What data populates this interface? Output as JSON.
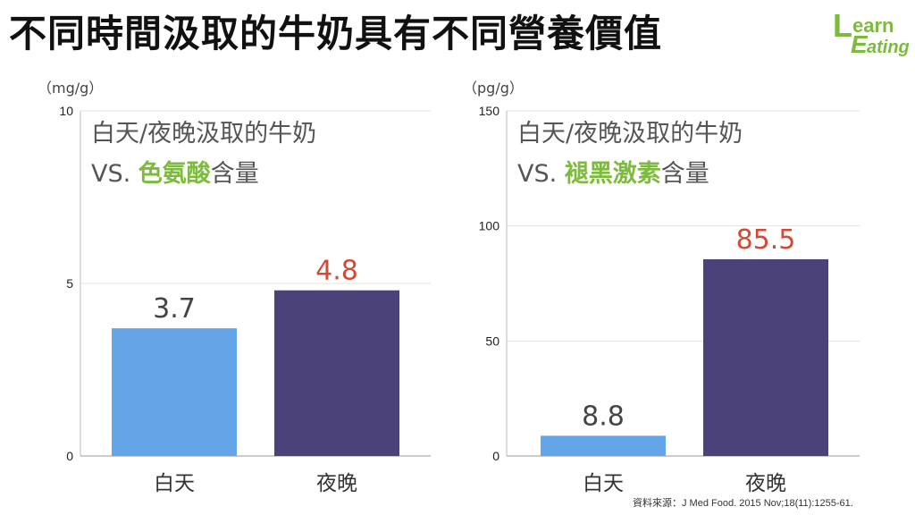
{
  "title": "不同時間汲取的牛奶具有不同營養價值",
  "logo": {
    "line1_initial": "L",
    "line1_rest": "earn",
    "line2_initial": "E",
    "line2_rest": "ating",
    "color": "#7dbb3c"
  },
  "source": "資料來源：J Med Food. 2015 Nov;18(11):1255-61.",
  "colors": {
    "day_bar": "#63a5e6",
    "night_bar": "#4b4279",
    "highlight_label": "#d24a36",
    "value_label": "#444444",
    "accent_word": "#7dbb3c"
  },
  "chart_data": [
    {
      "type": "bar",
      "unit": "（mg/g）",
      "title_line1": "白天/夜晚汲取的牛奶",
      "title_line2_prefix": "VS. ",
      "title_line2_highlight": "色氨酸",
      "title_line2_suffix": "含量",
      "categories": [
        "白天",
        "夜晚"
      ],
      "values": [
        3.7,
        4.8
      ],
      "value_labels": [
        "3.7",
        "4.8"
      ],
      "ylim": [
        0,
        10
      ],
      "yticks": [
        0,
        5,
        10
      ],
      "ytick_labels": [
        "0",
        "5",
        "10"
      ],
      "grid": true
    },
    {
      "type": "bar",
      "unit": "（pg/g）",
      "title_line1": "白天/夜晚汲取的牛奶",
      "title_line2_prefix": "VS. ",
      "title_line2_highlight": "褪黑激素",
      "title_line2_suffix": "含量",
      "categories": [
        "白天",
        "夜晚"
      ],
      "values": [
        8.8,
        85.5
      ],
      "value_labels": [
        "8.8",
        "85.5"
      ],
      "ylim": [
        0,
        150
      ],
      "yticks": [
        0,
        50,
        100,
        150
      ],
      "ytick_labels": [
        "0",
        "50",
        "100",
        "150"
      ],
      "grid": true
    }
  ]
}
